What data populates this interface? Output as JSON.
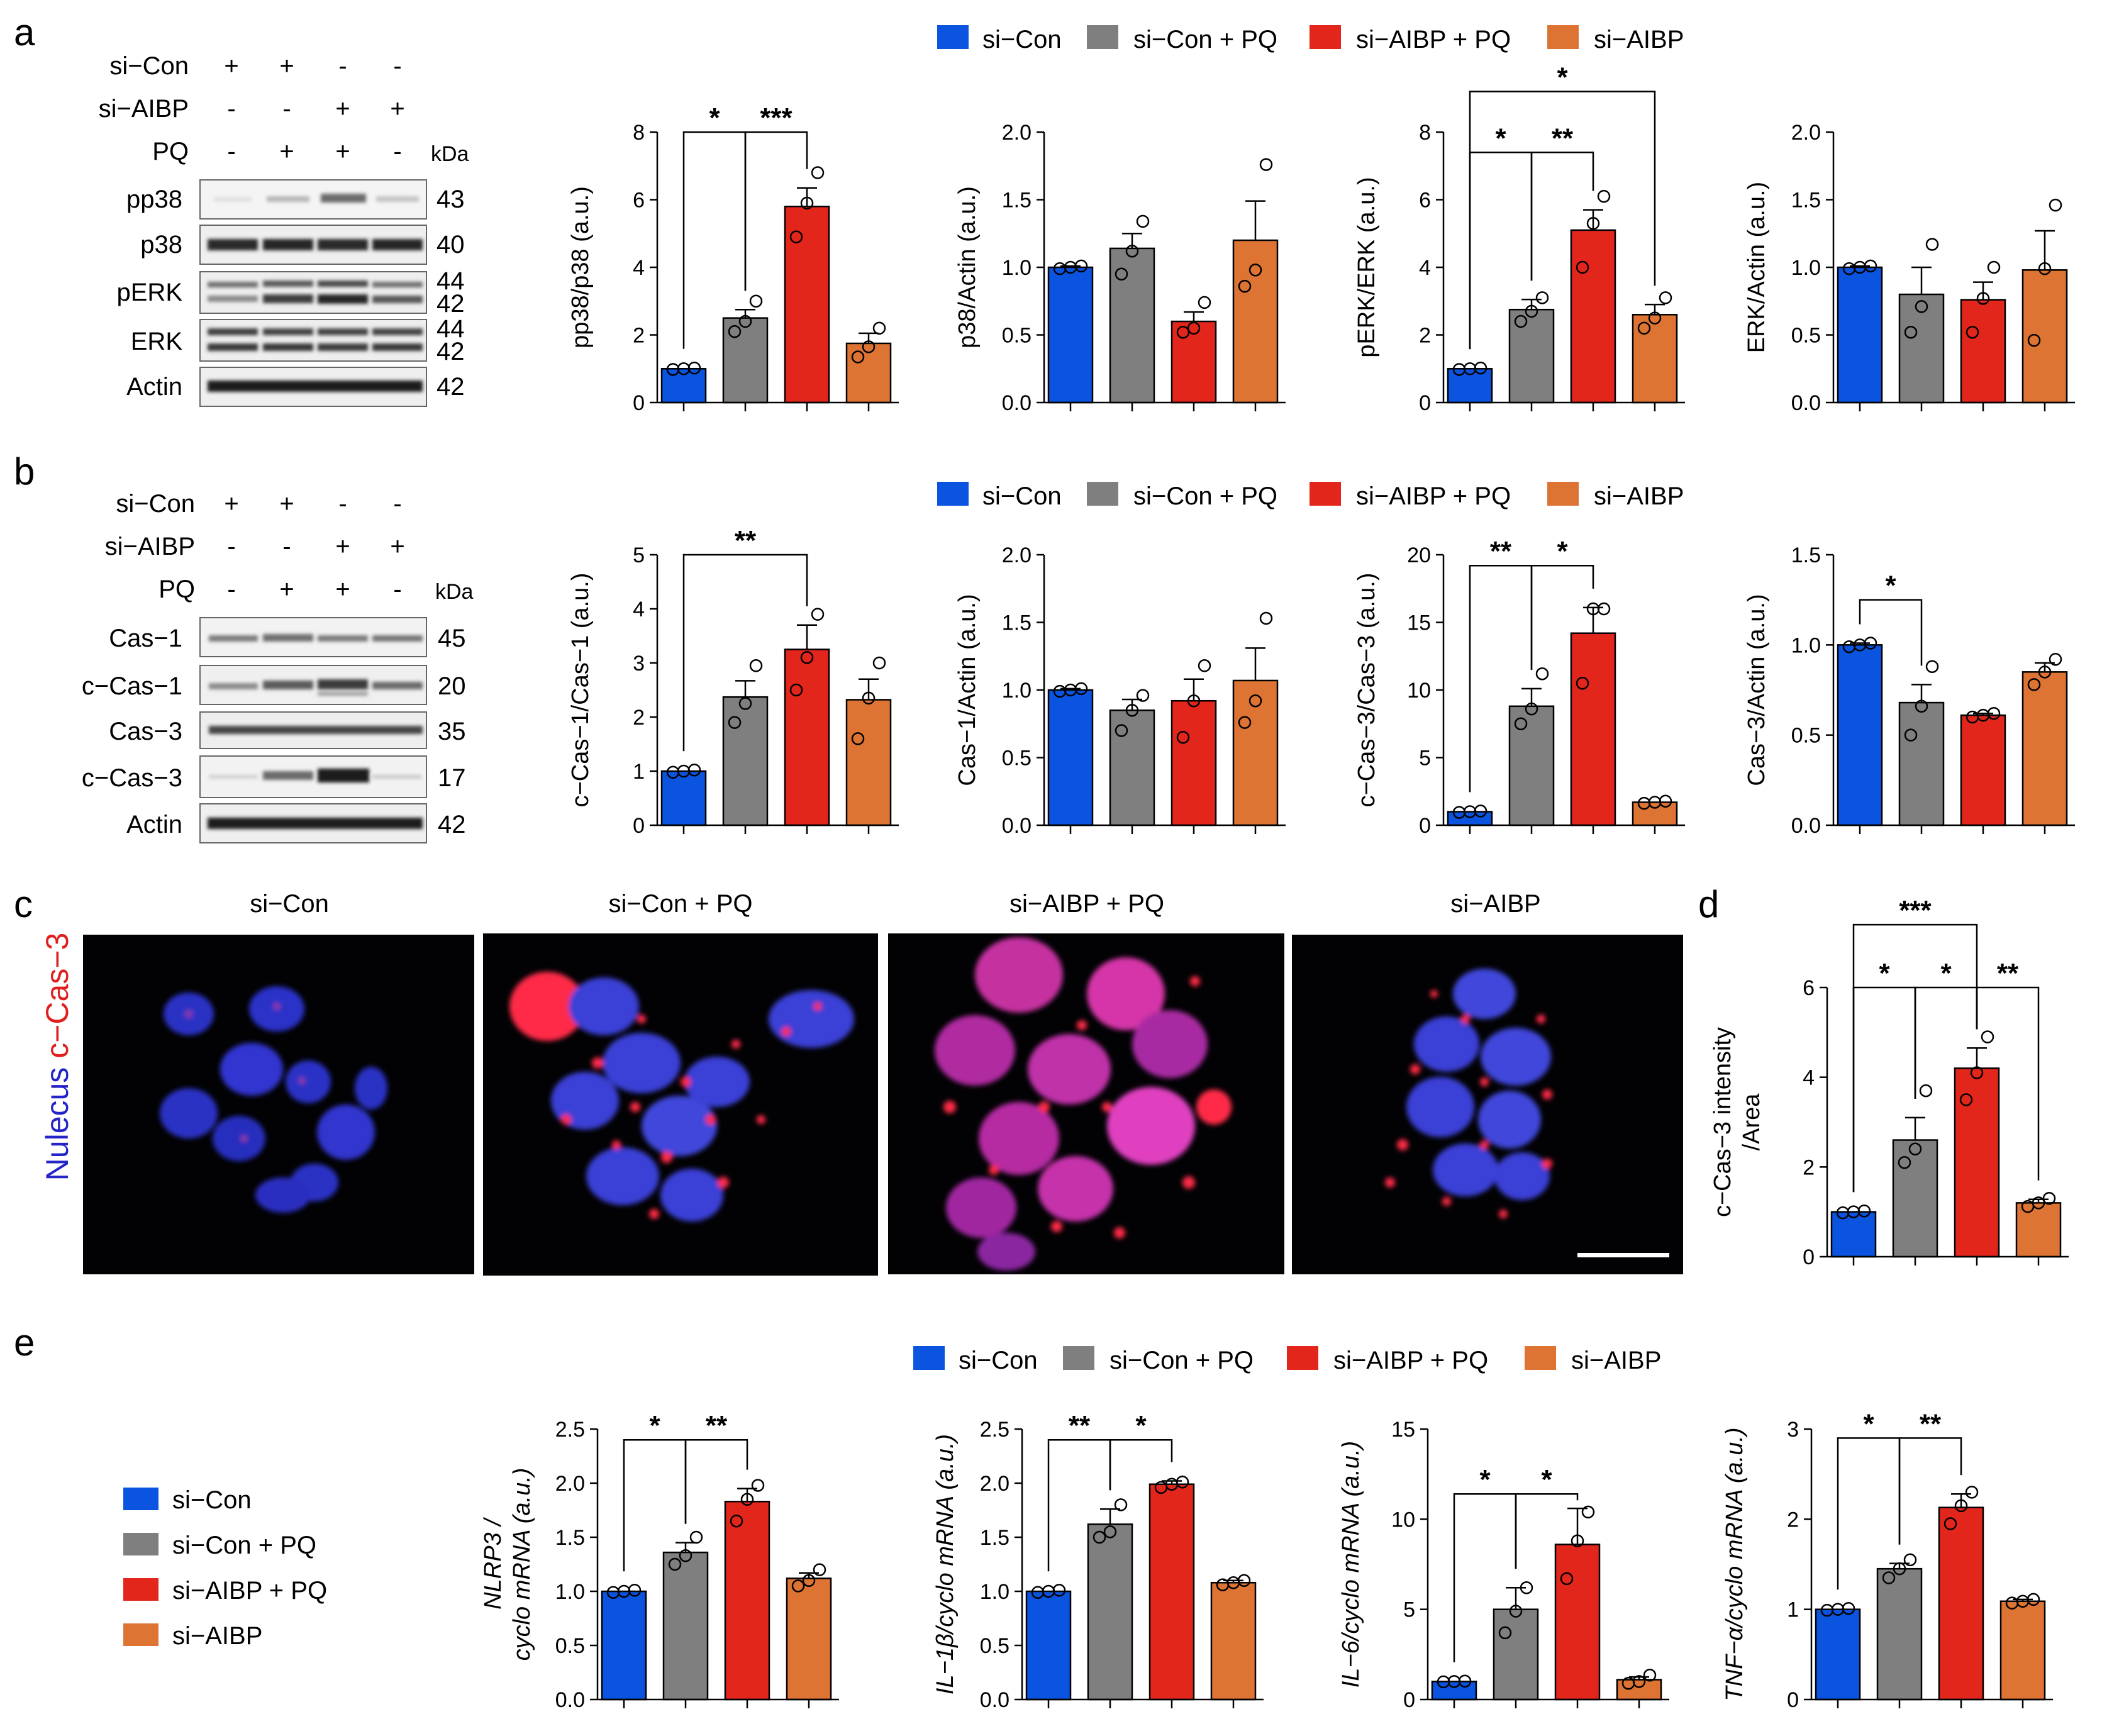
{
  "colors": {
    "si_con": "#0a54e0",
    "si_con_pq": "#7f7f7f",
    "si_aibp_pq": "#e3261b",
    "si_aibp": "#dd7434",
    "micro_blue": "#3a40d8",
    "micro_red": "#f02a3a",
    "micro_label_blue": "#2424c8",
    "micro_label_red": "#e01f1f"
  },
  "groups": [
    "si−Con",
    "si−Con + PQ",
    "si−AIBP + PQ",
    "si−AIBP"
  ],
  "panel_letters": [
    "a",
    "b",
    "c",
    "d",
    "e"
  ],
  "panel_a": {
    "wb_rows": [
      {
        "label": "si−Con",
        "signs": [
          "+",
          "+",
          "-",
          "-"
        ]
      },
      {
        "label": "si−AIBP",
        "signs": [
          "-",
          "-",
          "+",
          "+"
        ]
      },
      {
        "label": "PQ",
        "signs": [
          "-",
          "+",
          "+",
          "-"
        ]
      }
    ],
    "kda_label": "kDa",
    "blots": [
      {
        "label": "pp38",
        "kda": "43",
        "kda2": ""
      },
      {
        "label": "p38",
        "kda": "40",
        "kda2": ""
      },
      {
        "label": "pERK",
        "kda": "44",
        "kda2": "42"
      },
      {
        "label": "ERK",
        "kda": "44",
        "kda2": "42"
      },
      {
        "label": "Actin",
        "kda": "42",
        "kda2": ""
      }
    ]
  },
  "panel_b": {
    "wb_rows": [
      {
        "label": "si−Con",
        "signs": [
          "+",
          "+",
          "-",
          "-"
        ]
      },
      {
        "label": "si−AIBP",
        "signs": [
          "-",
          "-",
          "+",
          "+"
        ]
      },
      {
        "label": "PQ",
        "signs": [
          "-",
          "+",
          "+",
          "-"
        ]
      }
    ],
    "kda_label": "kDa",
    "blots": [
      {
        "label": "Cas−1",
        "kda": "45",
        "kda2": ""
      },
      {
        "label": "c−Cas−1",
        "kda": "20",
        "kda2": ""
      },
      {
        "label": "Cas−3",
        "kda": "35",
        "kda2": ""
      },
      {
        "label": "c−Cas−3",
        "kda": "17",
        "kda2": ""
      },
      {
        "label": "Actin",
        "kda": "42",
        "kda2": ""
      }
    ]
  },
  "panel_c": {
    "titles": [
      "si−Con",
      "si−Con + PQ",
      "si−AIBP + PQ",
      "si−AIBP"
    ],
    "side_label_blue": "Nulecus",
    "side_label_red": "c−Cas−3"
  },
  "legend_e_side": [
    "si−Con",
    "si−Con + PQ",
    "si−AIBP + PQ",
    "si−AIBP"
  ],
  "chart_data": [
    {
      "id": "a1",
      "type": "bar",
      "ylabel": "pp38/p38 (a.u.)",
      "ylim": [
        0,
        8
      ],
      "ticks": [
        "0",
        "2",
        "4",
        "6",
        "8"
      ],
      "categories": [
        "si−Con",
        "si−Con + PQ",
        "si−AIBP + PQ",
        "si−AIBP"
      ],
      "values": [
        1.0,
        2.5,
        5.8,
        1.75
      ],
      "errors": [
        0.03,
        0.25,
        0.55,
        0.3
      ],
      "points": [
        [
          0.98,
          1.0,
          1.02
        ],
        [
          2.1,
          2.4,
          3.0
        ],
        [
          4.9,
          5.9,
          6.8
        ],
        [
          1.35,
          1.65,
          2.2
        ]
      ],
      "sig": [
        {
          "a": 0,
          "b": 1,
          "y": 8.0,
          "label": "*"
        },
        {
          "a": 1,
          "b": 2,
          "y": 8.0,
          "label": "***"
        }
      ]
    },
    {
      "id": "a2",
      "type": "bar",
      "ylabel": "p38/Actin (a.u.)",
      "ylim": [
        0,
        2
      ],
      "ticks": [
        "0.0",
        "0.5",
        "1.0",
        "1.5",
        "2.0"
      ],
      "categories": [
        "si−Con",
        "si−Con + PQ",
        "si−AIBP + PQ",
        "si−AIBP"
      ],
      "values": [
        1.0,
        1.14,
        0.6,
        1.2
      ],
      "errors": [
        0.01,
        0.11,
        0.07,
        0.29
      ],
      "points": [
        [
          0.99,
          1.0,
          1.01
        ],
        [
          0.95,
          1.12,
          1.34
        ],
        [
          0.52,
          0.55,
          0.74
        ],
        [
          0.86,
          0.98,
          1.76
        ]
      ],
      "sig": []
    },
    {
      "id": "a3",
      "type": "bar",
      "ylabel": "pERK/ERK (a.u.)",
      "ylim": [
        0,
        8
      ],
      "ticks": [
        "0",
        "2",
        "4",
        "6",
        "8"
      ],
      "categories": [
        "si−Con",
        "si−Con + PQ",
        "si−AIBP + PQ",
        "si−AIBP"
      ],
      "values": [
        1.0,
        2.75,
        5.1,
        2.6
      ],
      "errors": [
        0.02,
        0.3,
        0.6,
        0.3
      ],
      "points": [
        [
          0.98,
          1.0,
          1.02
        ],
        [
          2.4,
          2.7,
          3.1
        ],
        [
          4.0,
          5.3,
          6.1
        ],
        [
          2.2,
          2.5,
          3.1
        ]
      ],
      "sig": [
        {
          "a": 0,
          "b": 1,
          "y": 7.4,
          "label": "*"
        },
        {
          "a": 1,
          "b": 2,
          "y": 7.4,
          "label": "**"
        },
        {
          "a": 0,
          "b": 3,
          "y": 9.2,
          "label": "*"
        }
      ]
    },
    {
      "id": "a4",
      "type": "bar",
      "ylabel": "ERK/Actin (a.u.)",
      "ylim": [
        0,
        2
      ],
      "ticks": [
        "0.0",
        "0.5",
        "1.0",
        "1.5",
        "2.0"
      ],
      "categories": [
        "si−Con",
        "si−Con + PQ",
        "si−AIBP + PQ",
        "si−AIBP"
      ],
      "values": [
        1.0,
        0.8,
        0.76,
        0.98
      ],
      "errors": [
        0.01,
        0.2,
        0.13,
        0.29
      ],
      "points": [
        [
          0.99,
          1.0,
          1.01
        ],
        [
          0.52,
          0.71,
          1.17
        ],
        [
          0.52,
          0.77,
          1.0
        ],
        [
          0.46,
          0.99,
          1.46
        ]
      ],
      "sig": []
    },
    {
      "id": "b1",
      "type": "bar",
      "ylabel": "c−Cas−1/Cas−1 (a.u.)",
      "ylim": [
        0,
        5
      ],
      "ticks": [
        "0",
        "1",
        "2",
        "3",
        "4",
        "5"
      ],
      "categories": [
        "si−Con",
        "si−Con + PQ",
        "si−AIBP + PQ",
        "si−AIBP"
      ],
      "values": [
        1.0,
        2.37,
        3.25,
        2.32
      ],
      "errors": [
        0.02,
        0.3,
        0.45,
        0.38
      ],
      "points": [
        [
          0.98,
          1.0,
          1.02
        ],
        [
          1.9,
          2.25,
          2.95
        ],
        [
          2.5,
          3.1,
          3.9
        ],
        [
          1.6,
          2.35,
          3.0
        ]
      ],
      "sig": [
        {
          "a": 0,
          "b": 2,
          "y": 5.0,
          "label": "**"
        }
      ]
    },
    {
      "id": "b2",
      "type": "bar",
      "ylabel": "Cas−1/Actin (a.u.)",
      "ylim": [
        0,
        2
      ],
      "ticks": [
        "0.0",
        "0.5",
        "1.0",
        "1.5",
        "2.0"
      ],
      "categories": [
        "si−Con",
        "si−Con + PQ",
        "si−AIBP + PQ",
        "si−AIBP"
      ],
      "values": [
        1.0,
        0.85,
        0.92,
        1.07
      ],
      "errors": [
        0.01,
        0.08,
        0.16,
        0.24
      ],
      "points": [
        [
          0.99,
          1.0,
          1.01
        ],
        [
          0.7,
          0.85,
          0.96
        ],
        [
          0.65,
          0.92,
          1.18
        ],
        [
          0.76,
          0.92,
          1.53
        ]
      ],
      "sig": []
    },
    {
      "id": "b3",
      "type": "bar",
      "ylabel": "c−Cas−3/Cas−3 (a.u.)",
      "ylim": [
        0,
        20
      ],
      "ticks": [
        "0",
        "5",
        "10",
        "15",
        "20"
      ],
      "categories": [
        "si−Con",
        "si−Con + PQ",
        "si−AIBP + PQ",
        "si−AIBP"
      ],
      "values": [
        1.0,
        8.8,
        14.2,
        1.7
      ],
      "errors": [
        0.05,
        1.3,
        1.9,
        0.08
      ],
      "points": [
        [
          0.95,
          1.0,
          1.05
        ],
        [
          7.5,
          8.6,
          11.2
        ],
        [
          10.5,
          16.0,
          16.0
        ],
        [
          1.62,
          1.7,
          1.78
        ]
      ],
      "sig": [
        {
          "a": 0,
          "b": 1,
          "y": 19.2,
          "label": "**"
        },
        {
          "a": 1,
          "b": 2,
          "y": 19.2,
          "label": "*"
        }
      ]
    },
    {
      "id": "b4",
      "type": "bar",
      "ylabel": "Cas−3/Actin (a.u.)",
      "ylim": [
        0,
        1.5
      ],
      "ticks": [
        "0.0",
        "0.5",
        "1.0",
        "1.5"
      ],
      "categories": [
        "si−Con",
        "si−Con + PQ",
        "si−AIBP + PQ",
        "si−AIBP"
      ],
      "values": [
        1.0,
        0.68,
        0.61,
        0.85
      ],
      "errors": [
        0.01,
        0.1,
        0.01,
        0.05
      ],
      "points": [
        [
          0.99,
          1.0,
          1.01
        ],
        [
          0.5,
          0.66,
          0.88
        ],
        [
          0.6,
          0.61,
          0.62
        ],
        [
          0.78,
          0.85,
          0.92
        ]
      ],
      "sig": [
        {
          "a": 0,
          "b": 1,
          "y": 1.25,
          "label": "*"
        }
      ]
    },
    {
      "id": "d",
      "type": "bar",
      "ylabel": "c−Cas−3 intensity\n/Area",
      "ylim": [
        0,
        6
      ],
      "ticks": [
        "0",
        "2",
        "4",
        "6"
      ],
      "categories": [
        "si−Con",
        "si−Con + PQ",
        "si−AIBP + PQ",
        "si−AIBP"
      ],
      "values": [
        1.0,
        2.6,
        4.2,
        1.2
      ],
      "errors": [
        0.02,
        0.5,
        0.45,
        0.08
      ],
      "points": [
        [
          0.98,
          1.0,
          1.02
        ],
        [
          2.1,
          2.4,
          3.7
        ],
        [
          3.5,
          4.1,
          4.9
        ],
        [
          1.12,
          1.2,
          1.3
        ]
      ],
      "sig": [
        {
          "a": 0,
          "b": 1,
          "y": 6.0,
          "label": "*"
        },
        {
          "a": 1,
          "b": 2,
          "y": 6.0,
          "label": "*"
        },
        {
          "a": 2,
          "b": 3,
          "y": 6.0,
          "label": "**"
        },
        {
          "a": 0,
          "b": 2,
          "y": 7.4,
          "label": "***"
        }
      ]
    },
    {
      "id": "e1",
      "type": "bar",
      "ylabel": "NLRP3 /\ncyclo mRNA (a.u.)",
      "ylim": [
        0,
        2.5
      ],
      "ticks": [
        "0.0",
        "0.5",
        "1.0",
        "1.5",
        "2.0",
        "2.5"
      ],
      "categories": [
        "si−Con",
        "si−Con + PQ",
        "si−AIBP + PQ",
        "si−AIBP"
      ],
      "values": [
        1.0,
        1.36,
        1.83,
        1.12
      ],
      "errors": [
        0.01,
        0.09,
        0.12,
        0.05
      ],
      "points": [
        [
          0.99,
          1.0,
          1.01
        ],
        [
          1.25,
          1.33,
          1.5
        ],
        [
          1.65,
          1.85,
          1.98
        ],
        [
          1.05,
          1.1,
          1.2
        ]
      ],
      "sig": [
        {
          "a": 0,
          "b": 1,
          "y": 2.4,
          "label": "*"
        },
        {
          "a": 1,
          "b": 2,
          "y": 2.4,
          "label": "**"
        }
      ]
    },
    {
      "id": "e2",
      "type": "bar",
      "ylabel": "IL−1β/cyclo mRNA (a.u.)",
      "ylim": [
        0,
        2.5
      ],
      "ticks": [
        "0.0",
        "0.5",
        "1.0",
        "1.5",
        "2.0",
        "2.5"
      ],
      "categories": [
        "si−Con",
        "si−Con + PQ",
        "si−AIBP + PQ",
        "si−AIBP"
      ],
      "values": [
        1.0,
        1.62,
        1.99,
        1.08
      ],
      "errors": [
        0.01,
        0.14,
        0.03,
        0.02
      ],
      "points": [
        [
          0.99,
          1.0,
          1.01
        ],
        [
          1.5,
          1.55,
          1.8
        ],
        [
          1.96,
          1.99,
          2.01
        ],
        [
          1.06,
          1.08,
          1.1
        ]
      ],
      "sig": [
        {
          "a": 0,
          "b": 1,
          "y": 2.4,
          "label": "**"
        },
        {
          "a": 1,
          "b": 2,
          "y": 2.4,
          "label": "*"
        }
      ]
    },
    {
      "id": "e3",
      "type": "bar",
      "ylabel": "IL−6/cyclo mRNA (a.u.)",
      "ylim": [
        0,
        15
      ],
      "ticks": [
        "0",
        "5",
        "10",
        "15"
      ],
      "categories": [
        "si−Con",
        "si−Con + PQ",
        "si−AIBP + PQ",
        "si−AIBP"
      ],
      "values": [
        1.0,
        5.0,
        8.6,
        1.1
      ],
      "errors": [
        0.02,
        1.2,
        2.0,
        0.15
      ],
      "points": [
        [
          0.98,
          1.0,
          1.02
        ],
        [
          3.7,
          4.9,
          6.2
        ],
        [
          6.7,
          8.8,
          10.4
        ],
        [
          0.9,
          1.0,
          1.35
        ]
      ],
      "sig": [
        {
          "a": 0,
          "b": 1,
          "y": 11.4,
          "label": "*"
        },
        {
          "a": 1,
          "b": 2,
          "y": 11.4,
          "label": "*"
        }
      ]
    },
    {
      "id": "e4",
      "type": "bar",
      "ylabel": "TNF−α/cyclo mRNA (a.u.)",
      "ylim": [
        0,
        3
      ],
      "ticks": [
        "0",
        "1",
        "2",
        "3"
      ],
      "categories": [
        "si−Con",
        "si−Con + PQ",
        "si−AIBP + PQ",
        "si−AIBP"
      ],
      "values": [
        1.0,
        1.45,
        2.13,
        1.09
      ],
      "errors": [
        0.01,
        0.06,
        0.15,
        0.02
      ],
      "points": [
        [
          0.99,
          1.0,
          1.01
        ],
        [
          1.35,
          1.45,
          1.55
        ],
        [
          1.95,
          2.15,
          2.3
        ],
        [
          1.07,
          1.09,
          1.11
        ]
      ],
      "sig": [
        {
          "a": 0,
          "b": 1,
          "y": 2.9,
          "label": "*"
        },
        {
          "a": 1,
          "b": 2,
          "y": 2.9,
          "label": "**"
        }
      ]
    }
  ]
}
